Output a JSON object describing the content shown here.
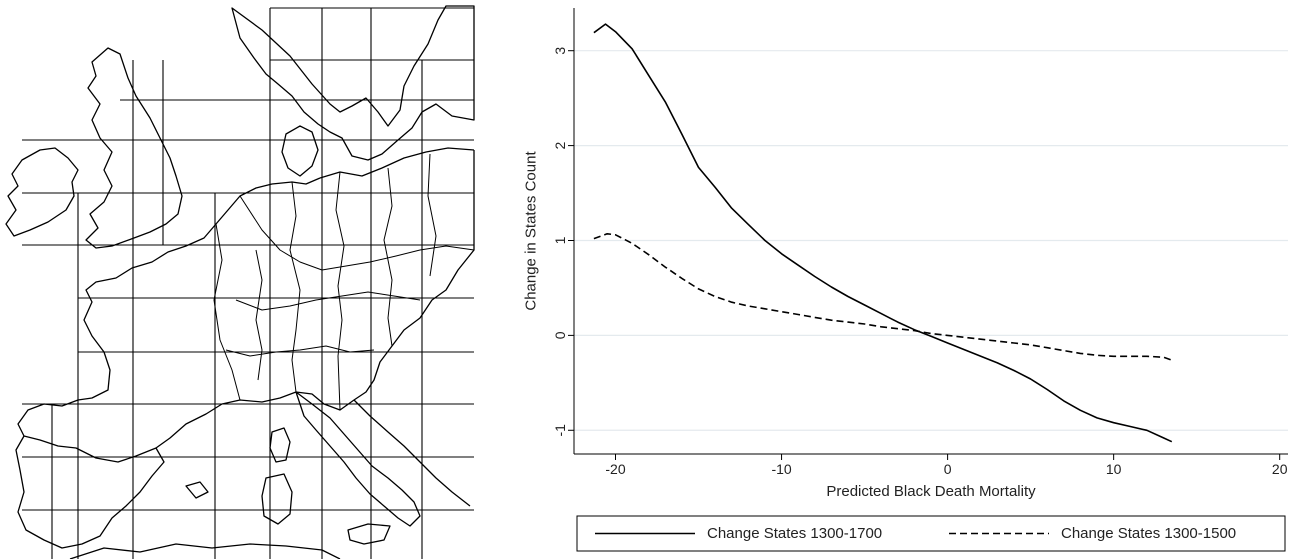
{
  "map": {
    "grid_color": "#000000",
    "coast_color": "#000000"
  },
  "chart_data": {
    "type": "line",
    "title": "",
    "xlabel": "Predicted Black Death Mortality",
    "ylabel": "Change in States Count",
    "xlim": [
      -22.5,
      20.5
    ],
    "ylim": [
      -1.25,
      3.45
    ],
    "xticks": [
      -20,
      -10,
      0,
      10,
      20
    ],
    "xtick_labels": [
      "-20",
      "-10",
      "0",
      "10",
      "20"
    ],
    "yticks": [
      -1,
      0,
      1,
      2,
      3
    ],
    "ytick_labels": [
      "-1",
      "0",
      "1",
      "2",
      "3"
    ],
    "grid": "horizontal",
    "legend_position": "bottom",
    "series": [
      {
        "name": "Change States 1300-1700",
        "style": "solid",
        "color": "#000000",
        "x": [
          -21.3,
          -20.6,
          -20,
          -19,
          -18,
          -17,
          -16,
          -15,
          -14,
          -13,
          -12,
          -11,
          -10,
          -9,
          -8,
          -7,
          -6,
          -5,
          -4,
          -3,
          -2,
          -1,
          0,
          1,
          2,
          3,
          4,
          5,
          6,
          7,
          8,
          9,
          10,
          11,
          12,
          13,
          13.5
        ],
        "y": [
          3.19,
          3.28,
          3.2,
          3.02,
          2.74,
          2.46,
          2.12,
          1.77,
          1.56,
          1.34,
          1.17,
          1.0,
          0.86,
          0.74,
          0.62,
          0.51,
          0.41,
          0.32,
          0.23,
          0.14,
          0.06,
          -0.01,
          -0.08,
          -0.15,
          -0.22,
          -0.29,
          -0.37,
          -0.46,
          -0.57,
          -0.69,
          -0.79,
          -0.87,
          -0.92,
          -0.96,
          -1.0,
          -1.08,
          -1.12
        ]
      },
      {
        "name": "Change States 1300-1500",
        "style": "dashed",
        "color": "#000000",
        "x": [
          -21.3,
          -20.5,
          -20,
          -19,
          -18,
          -17,
          -16,
          -15,
          -14,
          -13,
          -12,
          -11,
          -10,
          -9,
          -8,
          -7,
          -6,
          -5,
          -4,
          -3,
          -2,
          -1,
          0,
          1,
          2,
          3,
          4,
          5,
          6,
          7,
          8,
          9,
          10,
          11,
          12,
          13,
          13.5
        ],
        "y": [
          1.02,
          1.07,
          1.06,
          0.97,
          0.85,
          0.72,
          0.6,
          0.49,
          0.41,
          0.35,
          0.31,
          0.28,
          0.25,
          0.22,
          0.19,
          0.16,
          0.14,
          0.12,
          0.09,
          0.07,
          0.05,
          0.02,
          0.0,
          -0.02,
          -0.04,
          -0.06,
          -0.08,
          -0.1,
          -0.13,
          -0.16,
          -0.19,
          -0.21,
          -0.22,
          -0.22,
          -0.22,
          -0.23,
          -0.26
        ]
      }
    ]
  }
}
